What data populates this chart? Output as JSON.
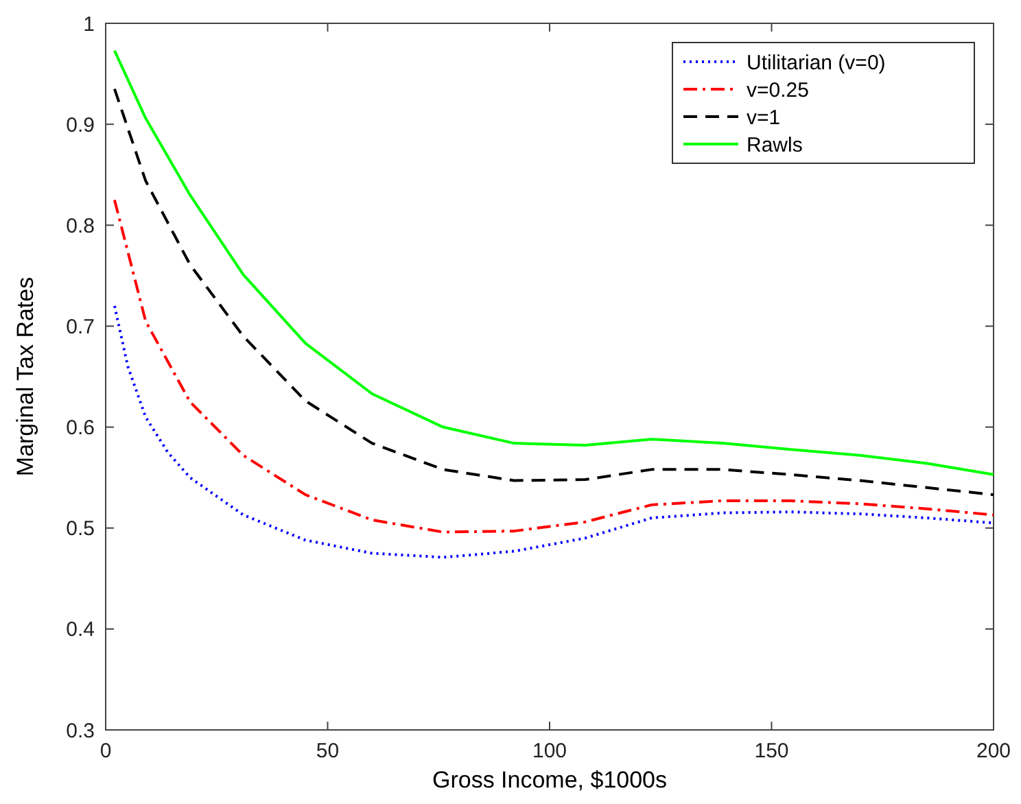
{
  "chart_data": {
    "type": "line",
    "xlabel": "Gross Income, $1000s",
    "ylabel": "Marginal Tax Rates",
    "xlim": [
      0,
      200
    ],
    "ylim": [
      0.3,
      1
    ],
    "xticks": [
      0,
      50,
      100,
      150,
      200
    ],
    "yticks": [
      0.3,
      0.4,
      0.5,
      0.6,
      0.7,
      0.8,
      0.9,
      1
    ],
    "grid": false,
    "legend": "top right",
    "series": [
      {
        "name": "Utilitarian (v=0)",
        "color": "#0000ff",
        "line_style": "dotted",
        "x": [
          2,
          5,
          9,
          14,
          19,
          31,
          45,
          60,
          76,
          92,
          108,
          123,
          139,
          154,
          170,
          185,
          200
        ],
        "values": [
          0.72,
          0.66,
          0.61,
          0.575,
          0.55,
          0.513,
          0.488,
          0.475,
          0.471,
          0.477,
          0.49,
          0.51,
          0.515,
          0.516,
          0.514,
          0.51,
          0.505
        ]
      },
      {
        "name": "v=0.25",
        "color": "#ff0000",
        "line_style": "dashdot",
        "x": [
          2,
          9,
          19,
          31,
          45,
          60,
          76,
          92,
          108,
          123,
          139,
          154,
          170,
          185,
          200
        ],
        "values": [
          0.825,
          0.705,
          0.625,
          0.572,
          0.533,
          0.508,
          0.496,
          0.497,
          0.506,
          0.523,
          0.527,
          0.527,
          0.524,
          0.519,
          0.513
        ]
      },
      {
        "name": "v=1",
        "color": "#000000",
        "line_style": "dashed",
        "x": [
          2,
          9,
          19,
          31,
          45,
          60,
          76,
          92,
          108,
          123,
          139,
          154,
          170,
          185,
          200
        ],
        "values": [
          0.935,
          0.844,
          0.761,
          0.69,
          0.626,
          0.584,
          0.558,
          0.547,
          0.548,
          0.558,
          0.558,
          0.553,
          0.547,
          0.54,
          0.533
        ]
      },
      {
        "name": "Rawls",
        "color": "#00ff00",
        "line_style": "solid",
        "x": [
          2,
          9,
          19,
          31,
          45,
          60,
          76,
          92,
          108,
          123,
          139,
          154,
          170,
          185,
          200
        ],
        "values": [
          0.973,
          0.906,
          0.83,
          0.751,
          0.683,
          0.633,
          0.6,
          0.584,
          0.582,
          0.588,
          0.584,
          0.578,
          0.572,
          0.564,
          0.553
        ]
      }
    ]
  }
}
